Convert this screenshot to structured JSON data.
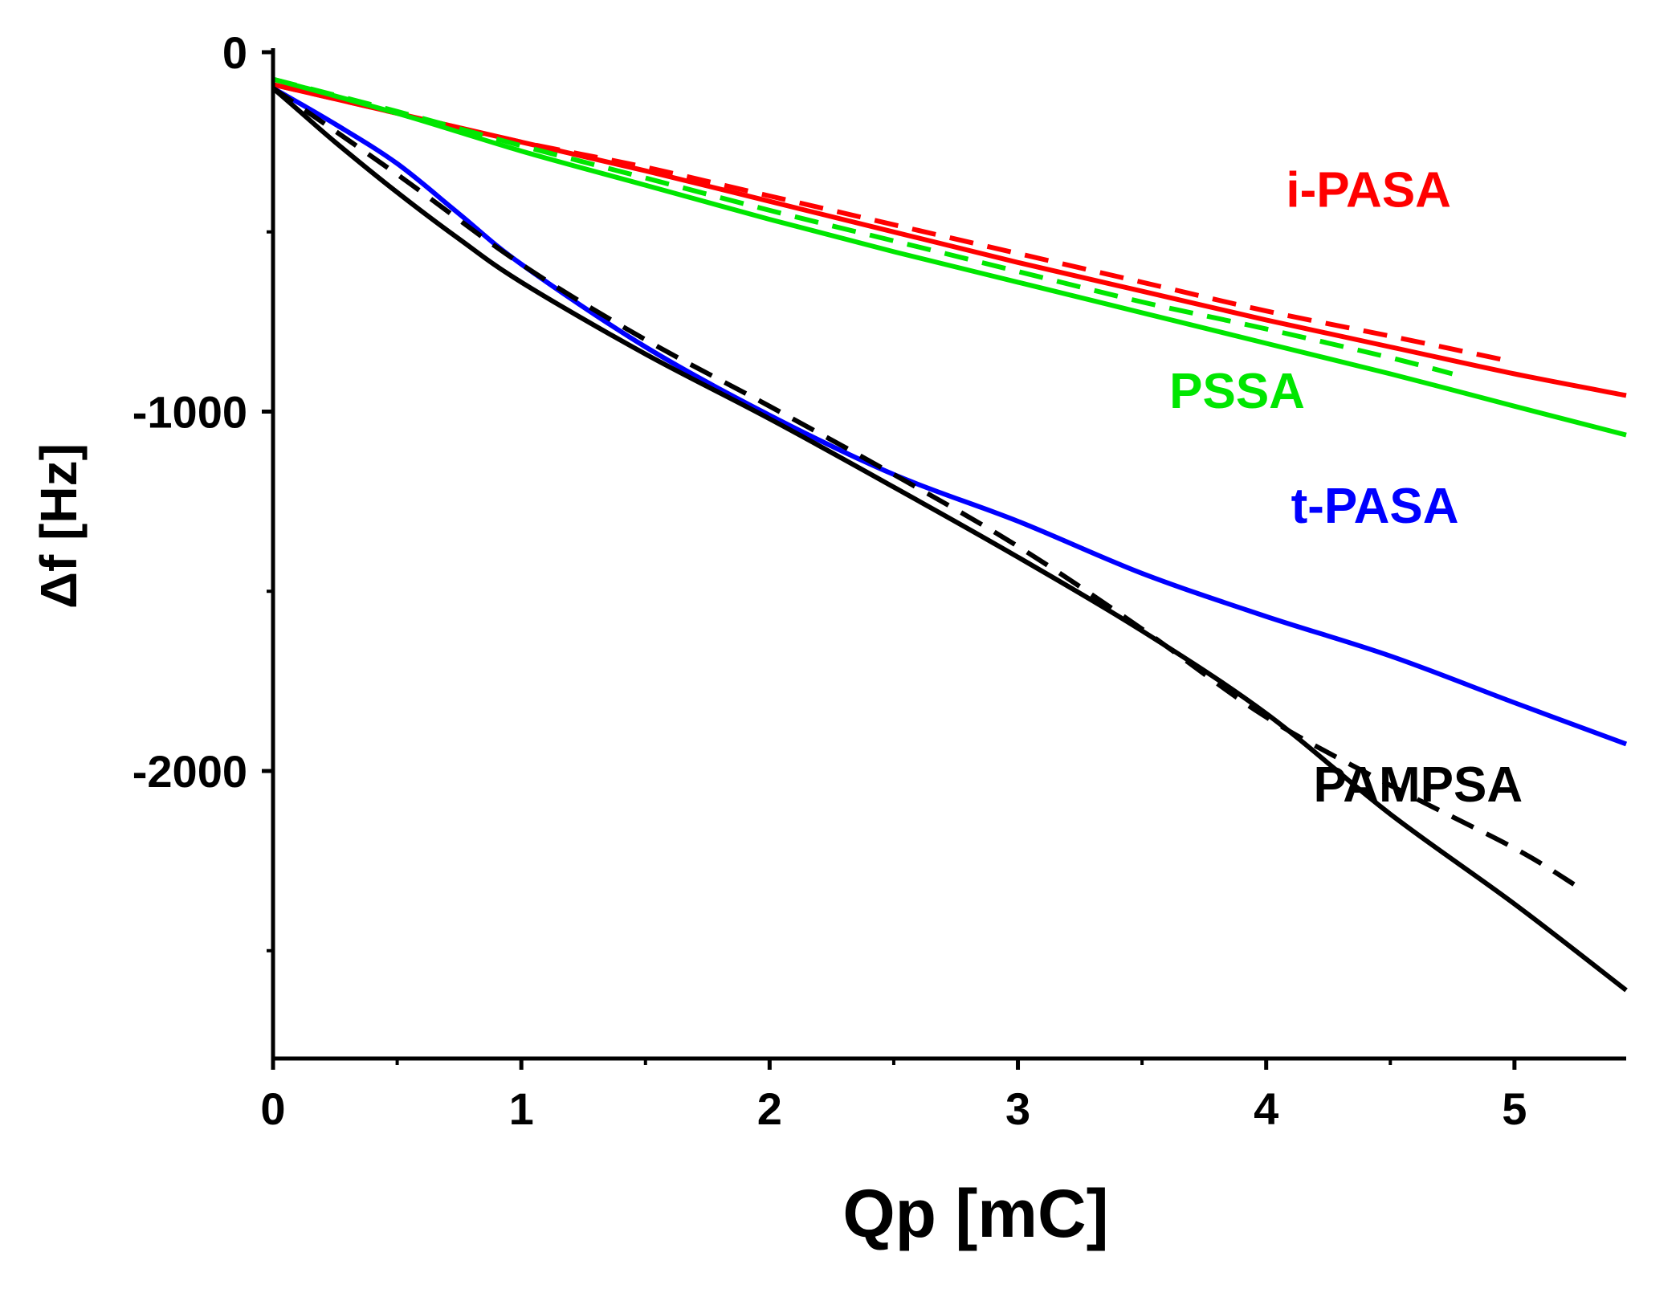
{
  "chart_data": {
    "type": "line",
    "title": "",
    "xlabel": "Qp [mC]",
    "ylabel": "Δf [Hz]",
    "xlim": [
      0,
      5.45
    ],
    "ylim": [
      -2800,
      0
    ],
    "xticks": [
      0,
      1,
      2,
      3,
      4,
      5
    ],
    "xtick_labels": [
      "0",
      "1",
      "2",
      "3",
      "4",
      "5"
    ],
    "xminor": [
      0.5,
      1.5,
      2.5,
      3.5,
      4.5
    ],
    "yticks": [
      0,
      -1000,
      -2000
    ],
    "ytick_labels": [
      "0",
      "-1000",
      "-2000"
    ],
    "yminor": [
      -500,
      -1500,
      -2500
    ],
    "grid": false,
    "colors": {
      "i-PASA": "#ff0000",
      "PSSA": "#00e600",
      "t-PASA": "#0000ff",
      "PAMPSA": "#000000"
    },
    "series": [
      {
        "name": "i-PASA",
        "style": "solid",
        "color": "#ff0000",
        "x": [
          0,
          0.5,
          1,
          1.5,
          2,
          2.5,
          3,
          3.5,
          4,
          4.5,
          5,
          5.45
        ],
        "y": [
          -90,
          -170,
          -250,
          -330,
          -415,
          -500,
          -585,
          -665,
          -745,
          -820,
          -895,
          -955
        ]
      },
      {
        "name": "i-PASA",
        "style": "dashed",
        "color": "#ff0000",
        "x": [
          0,
          0.5,
          1,
          1.5,
          2,
          2.5,
          3,
          3.5,
          4,
          4.5,
          4.95
        ],
        "y": [
          -90,
          -170,
          -250,
          -320,
          -400,
          -480,
          -560,
          -640,
          -720,
          -790,
          -855
        ]
      },
      {
        "name": "PSSA",
        "style": "solid",
        "color": "#00e600",
        "x": [
          0,
          0.5,
          1,
          1.5,
          2,
          2.5,
          3,
          3.5,
          4,
          4.5,
          5,
          5.45
        ],
        "y": [
          -75,
          -170,
          -275,
          -370,
          -465,
          -555,
          -640,
          -725,
          -810,
          -895,
          -985,
          -1065
        ]
      },
      {
        "name": "PSSA",
        "style": "dashed",
        "color": "#00e600",
        "x": [
          0,
          0.5,
          1,
          1.5,
          2,
          2.5,
          3,
          3.5,
          4,
          4.5,
          4.75
        ],
        "y": [
          -75,
          -165,
          -260,
          -350,
          -440,
          -525,
          -610,
          -695,
          -770,
          -850,
          -895
        ]
      },
      {
        "name": "t-PASA",
        "style": "solid",
        "color": "#0000ff",
        "x": [
          0,
          0.25,
          0.5,
          0.75,
          1,
          1.5,
          2,
          2.5,
          3,
          3.5,
          4,
          4.5,
          5,
          5.45
        ],
        "y": [
          -100,
          -200,
          -310,
          -450,
          -590,
          -820,
          -1010,
          -1175,
          -1305,
          -1450,
          -1570,
          -1680,
          -1810,
          -1925
        ]
      },
      {
        "name": "PAMPSA",
        "style": "solid",
        "color": "#000000",
        "x": [
          0,
          0.1,
          0.25,
          0.5,
          0.75,
          1,
          1.5,
          2,
          2.5,
          3,
          3.5,
          4,
          4.5,
          5,
          5.45
        ],
        "y": [
          -100,
          -160,
          -250,
          -390,
          -520,
          -640,
          -840,
          -1020,
          -1210,
          -1405,
          -1610,
          -1840,
          -2120,
          -2370,
          -2610
        ]
      },
      {
        "name": "PAMPSA",
        "style": "dashed",
        "color": "#000000",
        "x": [
          0,
          0.5,
          1,
          1.5,
          2,
          2.5,
          3,
          3.5,
          4,
          4.5,
          5,
          5.25
        ],
        "y": [
          -100,
          -340,
          -590,
          -800,
          -985,
          -1175,
          -1375,
          -1605,
          -1850,
          -2040,
          -2215,
          -2320
        ]
      }
    ],
    "annotations": [
      {
        "text": "i-PASA",
        "color": "#ff0000",
        "x": 4.08,
        "y": -430
      },
      {
        "text": "PSSA",
        "color": "#00e600",
        "x": 3.61,
        "y": -990
      },
      {
        "text": "t-PASA",
        "color": "#0000ff",
        "x": 4.1,
        "y": -1310
      },
      {
        "text": "PAMPSA",
        "color": "#000000",
        "x": 4.19,
        "y": -2085
      }
    ]
  }
}
